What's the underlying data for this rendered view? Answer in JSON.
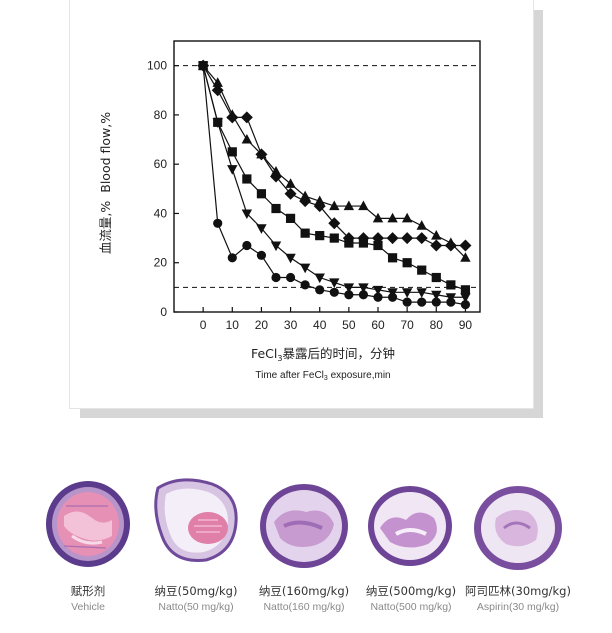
{
  "chart_data": {
    "type": "line",
    "ylabel_cn": "血流量,%",
    "ylabel_en": "Blood flow,%",
    "xlabel_cn_prefix": "FeCl",
    "xlabel_cn_sub": "3",
    "xlabel_cn_suffix": "暴露后的时间，分钟",
    "xlabel_en_prefix": "Time after FeCl",
    "xlabel_en_sub": "3",
    "xlabel_en_suffix": " exposure,min",
    "xlim": [
      -10,
      95
    ],
    "ylim": [
      0,
      110
    ],
    "x_ticks": [
      0,
      10,
      20,
      30,
      40,
      50,
      60,
      70,
      80,
      90
    ],
    "y_ticks": [
      0,
      20,
      40,
      60,
      80,
      100
    ],
    "reference_lines": [
      100,
      10
    ],
    "grid": false,
    "series": [
      {
        "marker": "circle",
        "x": [
          0,
          5,
          10,
          15,
          20,
          25,
          30,
          35,
          40,
          45,
          50,
          55,
          60,
          65,
          70,
          75,
          80,
          85,
          90
        ],
        "y": [
          100,
          36,
          22,
          27,
          23,
          14,
          14,
          11,
          9,
          8,
          7,
          7,
          6,
          6,
          4,
          4,
          4,
          4,
          3
        ]
      },
      {
        "marker": "triangle-down",
        "x": [
          0,
          5,
          10,
          15,
          20,
          25,
          30,
          35,
          40,
          45,
          50,
          55,
          60,
          65,
          70,
          75,
          80,
          85,
          90
        ],
        "y": [
          100,
          77,
          58,
          40,
          34,
          27,
          22,
          18,
          14,
          12,
          10,
          10,
          9,
          8,
          8,
          8,
          7,
          6,
          6
        ]
      },
      {
        "marker": "square",
        "x": [
          0,
          5,
          10,
          15,
          20,
          25,
          30,
          35,
          40,
          45,
          50,
          55,
          60,
          65,
          70,
          75,
          80,
          85,
          90
        ],
        "y": [
          100,
          77,
          65,
          54,
          48,
          42,
          38,
          32,
          31,
          30,
          28,
          28,
          27,
          22,
          20,
          17,
          14,
          11,
          9
        ]
      },
      {
        "marker": "diamond",
        "x": [
          0,
          5,
          10,
          15,
          20,
          25,
          30,
          35,
          40,
          45,
          50,
          55,
          60,
          65,
          70,
          75,
          80,
          85,
          90
        ],
        "y": [
          100,
          90,
          79,
          79,
          64,
          55,
          48,
          45,
          43,
          36,
          30,
          30,
          30,
          30,
          30,
          30,
          27,
          27,
          27
        ]
      },
      {
        "marker": "triangle-up",
        "x": [
          0,
          5,
          10,
          15,
          20,
          25,
          30,
          35,
          40,
          45,
          50,
          55,
          60,
          65,
          70,
          75,
          80,
          85,
          90
        ],
        "y": [
          100,
          93,
          80,
          70,
          64,
          57,
          52,
          47,
          45,
          43,
          43,
          43,
          38,
          38,
          38,
          35,
          31,
          28,
          22
        ]
      }
    ]
  },
  "samples": [
    {
      "label_cn": "赋形剂",
      "label_en": "Vehicle"
    },
    {
      "label_cn": "纳豆(50mg/kg)",
      "label_en": "Natto(50 mg/kg)"
    },
    {
      "label_cn": "纳豆(160mg/kg)",
      "label_en": "Natto(160 mg/kg)"
    },
    {
      "label_cn": "纳豆(500mg/kg)",
      "label_en": "Natto(500 mg/kg)"
    },
    {
      "label_cn": "阿司匹林(30mg/kg)",
      "label_en": "Aspirin(30 mg/kg)"
    }
  ],
  "colors": {
    "line": "#111111",
    "stain_pink": "#e690b6",
    "stain_purple": "#7b4a9a",
    "stain_dark": "#4b2f7e"
  }
}
